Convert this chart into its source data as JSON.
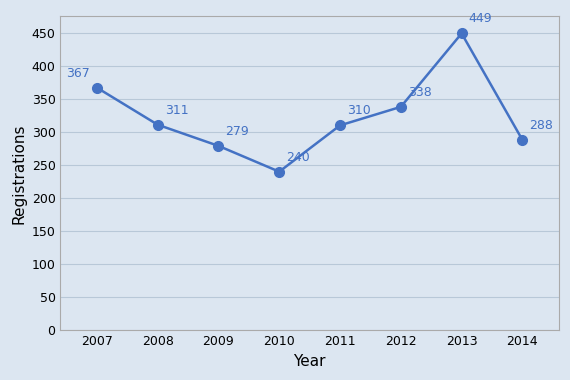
{
  "years": [
    2007,
    2008,
    2009,
    2010,
    2011,
    2012,
    2013,
    2014
  ],
  "values": [
    367,
    311,
    279,
    240,
    310,
    338,
    449,
    288
  ],
  "line_color": "#4472C4",
  "marker_color": "#4472C4",
  "xlabel": "Year",
  "ylabel": "Registrations",
  "xlim": [
    2006.4,
    2014.6
  ],
  "ylim": [
    0,
    475
  ],
  "yticks": [
    0,
    50,
    100,
    150,
    200,
    250,
    300,
    350,
    400,
    450
  ],
  "background_color": "#dce6f1",
  "plot_bg_color": "#dce6f1",
  "grid_color": "#b8c8d8",
  "font_size_labels": 11,
  "font_size_annot": 9,
  "marker_size": 7,
  "line_width": 1.8
}
